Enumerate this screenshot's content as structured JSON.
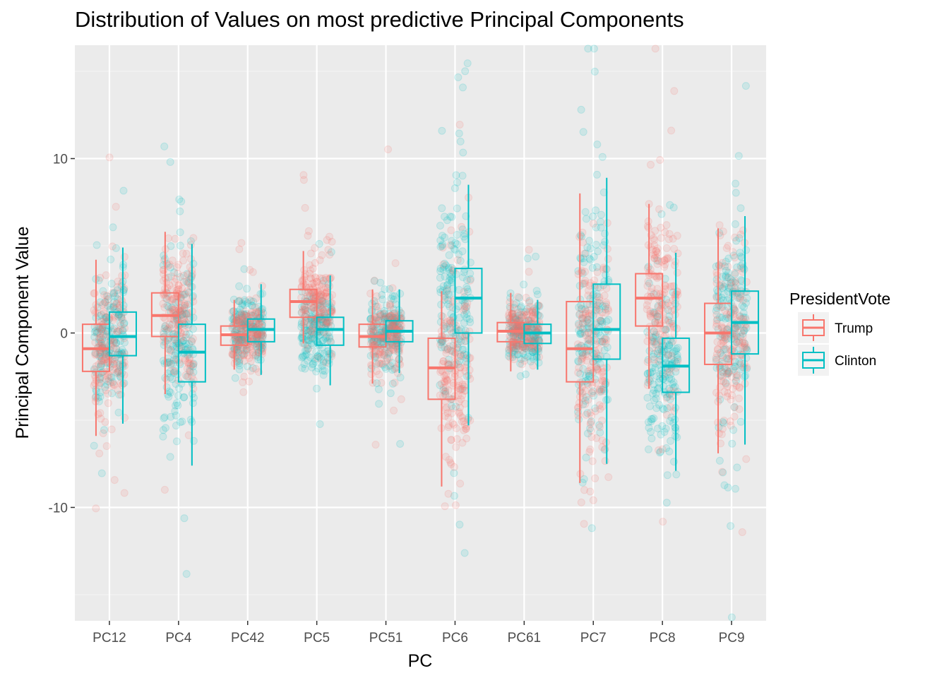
{
  "chart_data": {
    "type": "box",
    "title": "Distribution of Values on most predictive Principal Components",
    "xlabel": "PC",
    "ylabel": "Principal Component Value",
    "categories": [
      "PC12",
      "PC4",
      "PC42",
      "PC5",
      "PC51",
      "PC6",
      "PC61",
      "PC7",
      "PC8",
      "PC9"
    ],
    "ylim": [
      -16.5,
      16.5
    ],
    "yticks": [
      -10,
      0,
      10
    ],
    "ytick_labels": [
      "-10",
      "0",
      "10"
    ],
    "grid": true,
    "legend": {
      "title": "PresidentVote",
      "position": "right"
    },
    "series": [
      {
        "name": "Trump",
        "color": "#F8766D",
        "boxes": [
          {
            "q1": -2.2,
            "median": -0.9,
            "q3": 0.5,
            "low": -5.9,
            "high": 4.2
          },
          {
            "q1": -0.2,
            "median": 1.0,
            "q3": 2.3,
            "low": -3.5,
            "high": 5.8
          },
          {
            "q1": -0.7,
            "median": -0.1,
            "q3": 0.4,
            "low": -2.1,
            "high": 1.9
          },
          {
            "q1": 0.9,
            "median": 1.8,
            "q3": 2.5,
            "low": -0.6,
            "high": 4.7
          },
          {
            "q1": -0.8,
            "median": -0.2,
            "q3": 0.5,
            "low": -2.9,
            "high": 2.5
          },
          {
            "q1": -3.8,
            "median": -2.0,
            "q3": -0.3,
            "low": -8.8,
            "high": 2.4
          },
          {
            "q1": -0.5,
            "median": 0.1,
            "q3": 0.6,
            "low": -2.2,
            "high": 2.3
          },
          {
            "q1": -2.8,
            "median": -0.9,
            "q3": 1.8,
            "low": -8.6,
            "high": 8.0
          },
          {
            "q1": 0.4,
            "median": 2.0,
            "q3": 3.4,
            "low": -3.2,
            "high": 7.4
          },
          {
            "q1": -1.8,
            "median": 0.0,
            "q3": 1.7,
            "low": -6.9,
            "high": 6.0
          }
        ]
      },
      {
        "name": "Clinton",
        "color": "#00BFC4",
        "boxes": [
          {
            "q1": -1.3,
            "median": -0.2,
            "q3": 1.2,
            "low": -5.2,
            "high": 4.9
          },
          {
            "q1": -2.8,
            "median": -1.1,
            "q3": 0.5,
            "low": -7.6,
            "high": 5.1
          },
          {
            "q1": -0.5,
            "median": 0.2,
            "q3": 0.8,
            "low": -2.4,
            "high": 2.8
          },
          {
            "q1": -0.7,
            "median": 0.2,
            "q3": 0.9,
            "low": -3.0,
            "high": 3.3
          },
          {
            "q1": -0.5,
            "median": 0.1,
            "q3": 0.7,
            "low": -2.3,
            "high": 2.5
          },
          {
            "q1": 0.0,
            "median": 2.0,
            "q3": 3.7,
            "low": -5.3,
            "high": 8.5
          },
          {
            "q1": -0.6,
            "median": 0.0,
            "q3": 0.5,
            "low": -2.1,
            "high": 1.9
          },
          {
            "q1": -1.5,
            "median": 0.2,
            "q3": 2.8,
            "low": -7.5,
            "high": 8.9
          },
          {
            "q1": -3.4,
            "median": -1.9,
            "q3": -0.3,
            "low": -7.9,
            "high": 4.6
          },
          {
            "q1": -1.2,
            "median": 0.6,
            "q3": 2.4,
            "low": -6.4,
            "high": 6.7
          }
        ]
      }
    ]
  }
}
